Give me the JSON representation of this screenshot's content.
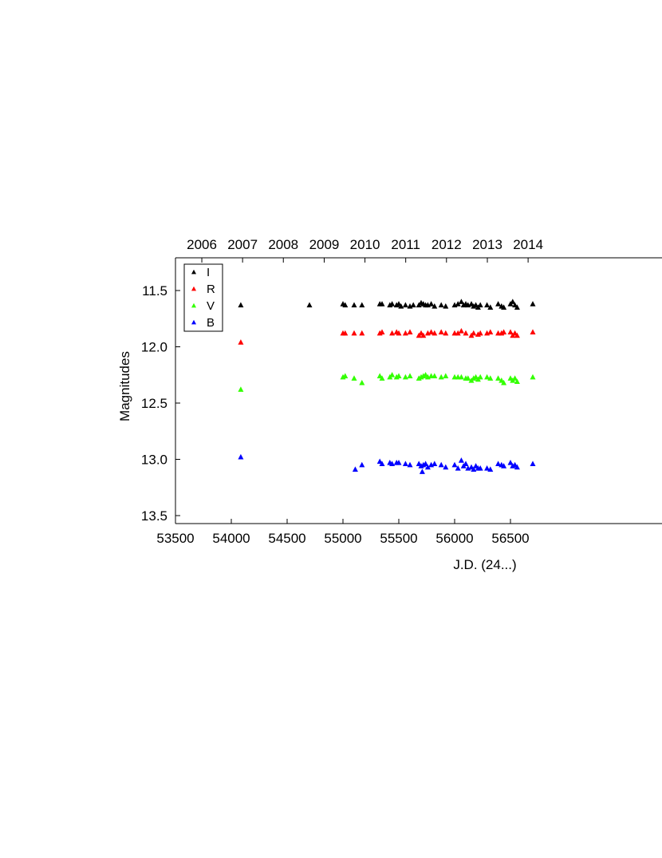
{
  "chart_data": {
    "type": "scatter",
    "title": "",
    "xlabel": "J.D. (24...)",
    "ylabel": "Magnitudes",
    "xlim": [
      53500,
      56800
    ],
    "ylim": [
      13.6,
      11.15
    ],
    "y_inverted": true,
    "grid": false,
    "legend_position": "top-left",
    "x_ticks": [
      "53500",
      "54000",
      "54500",
      "55000",
      "55500",
      "56000",
      "56500"
    ],
    "y_ticks": [
      "11.5",
      "12.0",
      "12.5",
      "13.0",
      "13.5"
    ],
    "top_axis_labels": [
      {
        "label": "2006",
        "jd": 53736
      },
      {
        "label": "2007",
        "jd": 54101
      },
      {
        "label": "2008",
        "jd": 54466
      },
      {
        "label": "2009",
        "jd": 54832
      },
      {
        "label": "2010",
        "jd": 55197
      },
      {
        "label": "2011",
        "jd": 55562
      },
      {
        "label": "2012",
        "jd": 55927
      },
      {
        "label": "2013",
        "jd": 56293
      },
      {
        "label": "2014",
        "jd": 56658
      }
    ],
    "series": [
      {
        "name": "I",
        "color": "#000000",
        "x": [
          54085,
          54700,
          55000,
          55020,
          55100,
          55170,
          55330,
          55350,
          55420,
          55440,
          55480,
          55500,
          55520,
          55560,
          55600,
          55630,
          55680,
          55700,
          55720,
          55740,
          55760,
          55790,
          55820,
          55880,
          55920,
          56000,
          56030,
          56060,
          56080,
          56100,
          56120,
          56150,
          56170,
          56190,
          56210,
          56230,
          56290,
          56320,
          56390,
          56420,
          56440,
          56500,
          56520,
          56540,
          56560,
          56700
        ],
        "y": [
          11.63,
          11.63,
          11.62,
          11.63,
          11.63,
          11.63,
          11.62,
          11.62,
          11.63,
          11.62,
          11.63,
          11.62,
          11.64,
          11.63,
          11.64,
          11.63,
          11.63,
          11.61,
          11.62,
          11.63,
          11.63,
          11.62,
          11.64,
          11.63,
          11.64,
          11.63,
          11.62,
          11.6,
          11.63,
          11.62,
          11.63,
          11.62,
          11.64,
          11.63,
          11.65,
          11.63,
          11.63,
          11.65,
          11.62,
          11.64,
          11.65,
          11.62,
          11.6,
          11.63,
          11.65,
          11.62
        ]
      },
      {
        "name": "R",
        "color": "#ff0000",
        "x": [
          54085,
          55000,
          55020,
          55100,
          55170,
          55330,
          55350,
          55440,
          55480,
          55500,
          55560,
          55600,
          55680,
          55700,
          55720,
          55760,
          55790,
          55820,
          55880,
          55920,
          56000,
          56030,
          56060,
          56100,
          56150,
          56170,
          56210,
          56230,
          56290,
          56320,
          56390,
          56420,
          56440,
          56500,
          56520,
          56540,
          56560,
          56700
        ],
        "y": [
          11.96,
          11.88,
          11.88,
          11.88,
          11.88,
          11.88,
          11.87,
          11.88,
          11.87,
          11.88,
          11.88,
          11.87,
          11.9,
          11.88,
          11.9,
          11.88,
          11.87,
          11.88,
          11.87,
          11.88,
          11.88,
          11.88,
          11.86,
          11.88,
          11.9,
          11.88,
          11.89,
          11.88,
          11.88,
          11.87,
          11.88,
          11.88,
          11.87,
          11.87,
          11.9,
          11.88,
          11.9,
          11.87
        ]
      },
      {
        "name": "V",
        "color": "#33ff00",
        "x": [
          54085,
          55000,
          55020,
          55100,
          55170,
          55330,
          55350,
          55420,
          55440,
          55480,
          55500,
          55560,
          55600,
          55680,
          55700,
          55720,
          55740,
          55760,
          55790,
          55820,
          55880,
          55920,
          56000,
          56030,
          56060,
          56100,
          56120,
          56150,
          56170,
          56190,
          56210,
          56230,
          56290,
          56320,
          56390,
          56420,
          56440,
          56500,
          56520,
          56540,
          56560,
          56700
        ],
        "y": [
          12.38,
          12.27,
          12.26,
          12.28,
          12.32,
          12.26,
          12.28,
          12.27,
          12.25,
          12.27,
          12.26,
          12.27,
          12.26,
          12.28,
          12.27,
          12.26,
          12.25,
          12.27,
          12.26,
          12.26,
          12.27,
          12.26,
          12.27,
          12.27,
          12.27,
          12.28,
          12.28,
          12.3,
          12.28,
          12.27,
          12.29,
          12.27,
          12.27,
          12.28,
          12.28,
          12.3,
          12.32,
          12.28,
          12.3,
          12.28,
          12.31,
          12.27
        ]
      },
      {
        "name": "B",
        "color": "#0000ff",
        "x": [
          54085,
          55110,
          55170,
          55330,
          55350,
          55420,
          55440,
          55480,
          55500,
          55560,
          55600,
          55680,
          55700,
          55710,
          55720,
          55740,
          55760,
          55790,
          55820,
          55880,
          55920,
          56000,
          56030,
          56060,
          56080,
          56100,
          56120,
          56150,
          56170,
          56190,
          56210,
          56230,
          56290,
          56320,
          56390,
          56420,
          56440,
          56500,
          56520,
          56540,
          56560,
          56700
        ],
        "y": [
          12.98,
          13.09,
          13.05,
          13.02,
          13.04,
          13.03,
          13.04,
          13.03,
          13.03,
          13.04,
          13.05,
          13.04,
          13.06,
          13.11,
          13.05,
          13.04,
          13.07,
          13.05,
          13.04,
          13.05,
          13.07,
          13.05,
          13.08,
          13.01,
          13.06,
          13.04,
          13.08,
          13.07,
          13.09,
          13.06,
          13.08,
          13.08,
          13.08,
          13.09,
          13.04,
          13.05,
          13.06,
          13.03,
          13.06,
          13.05,
          13.07,
          13.04
        ]
      }
    ]
  }
}
